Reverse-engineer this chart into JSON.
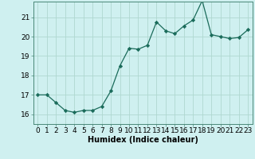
{
  "x": [
    0,
    1,
    2,
    3,
    4,
    5,
    6,
    7,
    8,
    9,
    10,
    11,
    12,
    13,
    14,
    15,
    16,
    17,
    18,
    19,
    20,
    21,
    22,
    23
  ],
  "y": [
    17.0,
    17.0,
    16.6,
    16.2,
    16.1,
    16.2,
    16.2,
    16.4,
    17.2,
    18.5,
    19.4,
    19.35,
    19.55,
    20.75,
    20.3,
    20.15,
    20.55,
    20.85,
    21.85,
    20.1,
    20.0,
    19.9,
    19.95,
    20.35
  ],
  "xlabel": "Humidex (Indice chaleur)",
  "bg_color": "#cff0f0",
  "grid_color": "#afd8d0",
  "line_color": "#1a6b5a",
  "marker_color": "#1a6b5a",
  "ylim": [
    15.5,
    21.8
  ],
  "xlim": [
    -0.5,
    23.5
  ],
  "yticks": [
    16,
    17,
    18,
    19,
    20,
    21
  ],
  "xticks": [
    0,
    1,
    2,
    3,
    4,
    5,
    6,
    7,
    8,
    9,
    10,
    11,
    12,
    13,
    14,
    15,
    16,
    17,
    18,
    19,
    20,
    21,
    22,
    23
  ],
  "xlabel_fontsize": 7,
  "tick_fontsize": 6.5
}
